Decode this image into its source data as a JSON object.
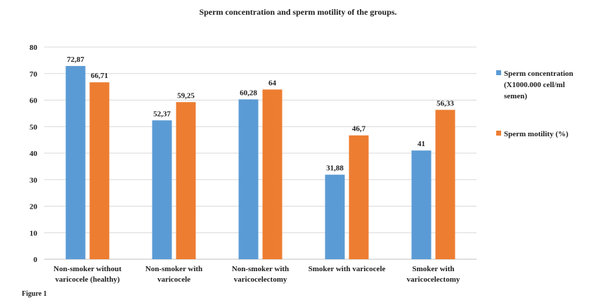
{
  "title": "Sperm concentration and sperm motility of the groups.",
  "figure_caption": "Figure 1",
  "chart_data": {
    "type": "bar",
    "title": "Sperm concentration and sperm motility of the groups.",
    "categories": [
      [
        "Non-smoker without",
        "varicocele (healthy)"
      ],
      [
        "Non-smoker with",
        "varicocele"
      ],
      [
        "Non-smoker with",
        "varicocelectomy"
      ],
      [
        "Smoker with varicocele"
      ],
      [
        "Smoker with",
        "varicocelectomy"
      ]
    ],
    "series": [
      {
        "name": "Sperm concentration (X1000.000 cell/ml semen)",
        "name_lines": [
          "Sperm concentration",
          "(X1000.000 cell/ml",
          "semen)"
        ],
        "color": "#5B9BD5",
        "values": [
          72.87,
          52.37,
          60.28,
          31.88,
          41
        ],
        "labels": [
          "72,87",
          "52,37",
          "60,28",
          "31,88",
          "41"
        ]
      },
      {
        "name": "Sperm motility (%)",
        "name_lines": [
          "Sperm motility (%)"
        ],
        "color": "#ED7D31",
        "values": [
          66.71,
          59.25,
          64,
          46.7,
          56.33
        ],
        "labels": [
          "66,71",
          "59,25",
          "64",
          "46,7",
          "56,33"
        ]
      }
    ],
    "ylim": [
      0,
      80
    ],
    "yticks": [
      0,
      10,
      20,
      30,
      40,
      50,
      60,
      70,
      80
    ],
    "grid": true,
    "legend_position": "right",
    "xlabel": "",
    "ylabel": ""
  }
}
